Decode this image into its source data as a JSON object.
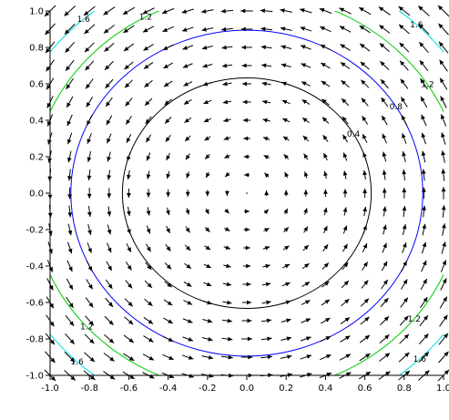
{
  "chart_data": {
    "type": "contour",
    "function": "x^2 + y^2",
    "field": "rotational vector field (-y, x)",
    "x_range": [
      -1.0,
      1.0
    ],
    "y_range": [
      -1.0,
      1.0
    ],
    "x_ticks": [
      "-1.0",
      "-0.8",
      "-0.6",
      "-0.4",
      "-0.2",
      "0.0",
      "0.2",
      "0.4",
      "0.6",
      "0.8",
      "1.0"
    ],
    "y_ticks": [
      "-1.0",
      "-0.8",
      "-0.6",
      "-0.4",
      "-0.2",
      "0.0",
      "0.2",
      "0.4",
      "0.6",
      "0.8",
      "1.0"
    ],
    "contours": [
      {
        "level": 0.4,
        "label": "0.4",
        "color": "#000000"
      },
      {
        "level": 0.8,
        "label": "0.8",
        "color": "#0000ff"
      },
      {
        "level": 1.2,
        "label": "1.2",
        "color": "#00cc00"
      },
      {
        "level": 1.6,
        "label": "1.6",
        "color": "#00dddd"
      }
    ],
    "arrow_grid": 21,
    "arrow_color": "#000000"
  }
}
